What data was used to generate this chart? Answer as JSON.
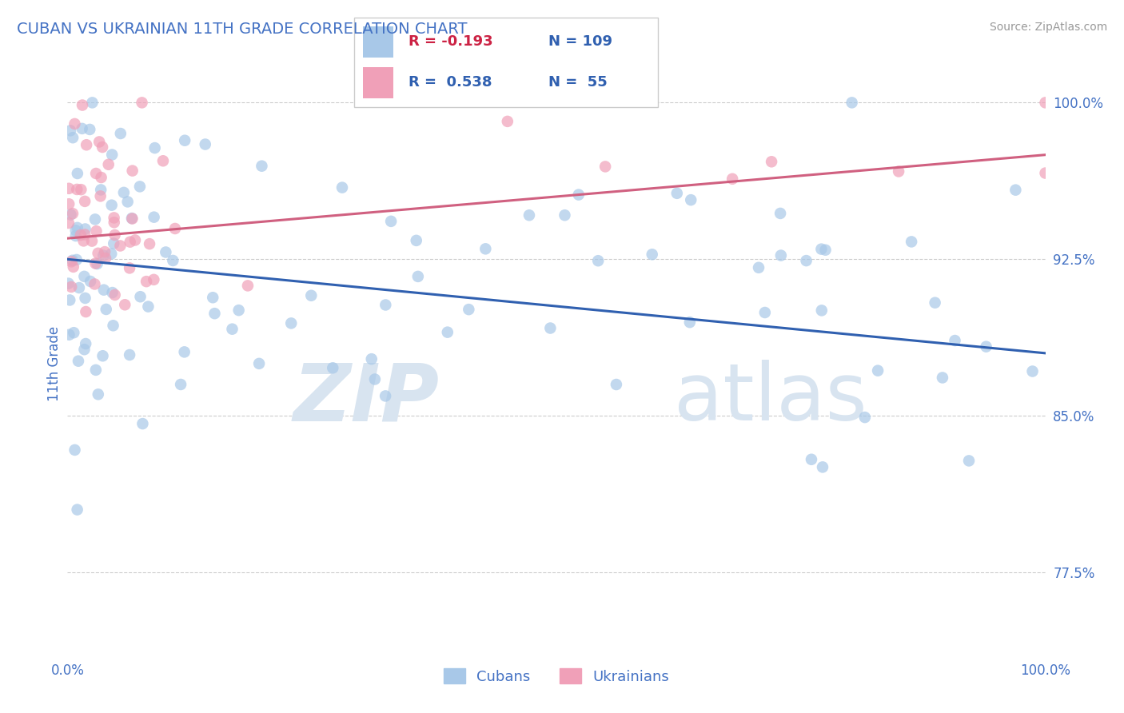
{
  "title": "CUBAN VS UKRAINIAN 11TH GRADE CORRELATION CHART",
  "source": "Source: ZipAtlas.com",
  "ylabel": "11th Grade",
  "xlim": [
    0.0,
    100.0
  ],
  "ylim": [
    73.5,
    101.5
  ],
  "yticks": [
    77.5,
    85.0,
    92.5,
    100.0
  ],
  "ytick_labels": [
    "77.5%",
    "85.0%",
    "92.5%",
    "100.0%"
  ],
  "blue_color": "#a8c8e8",
  "pink_color": "#f0a0b8",
  "blue_line_color": "#3060b0",
  "pink_line_color": "#d06080",
  "legend_blue_R": "-0.193",
  "legend_blue_N": "109",
  "legend_pink_R": "0.538",
  "legend_pink_N": "55",
  "legend_label_blue": "Cubans",
  "legend_label_pink": "Ukrainians",
  "blue_R": -0.193,
  "pink_R": 0.538,
  "title_color": "#4472c4",
  "axis_label_color": "#4472c4",
  "tick_color": "#4472c4",
  "watermark_color": "#d8e4f0",
  "blue_line_y0": 92.5,
  "blue_line_y1": 88.0,
  "pink_line_y0": 93.5,
  "pink_line_y1": 97.5
}
